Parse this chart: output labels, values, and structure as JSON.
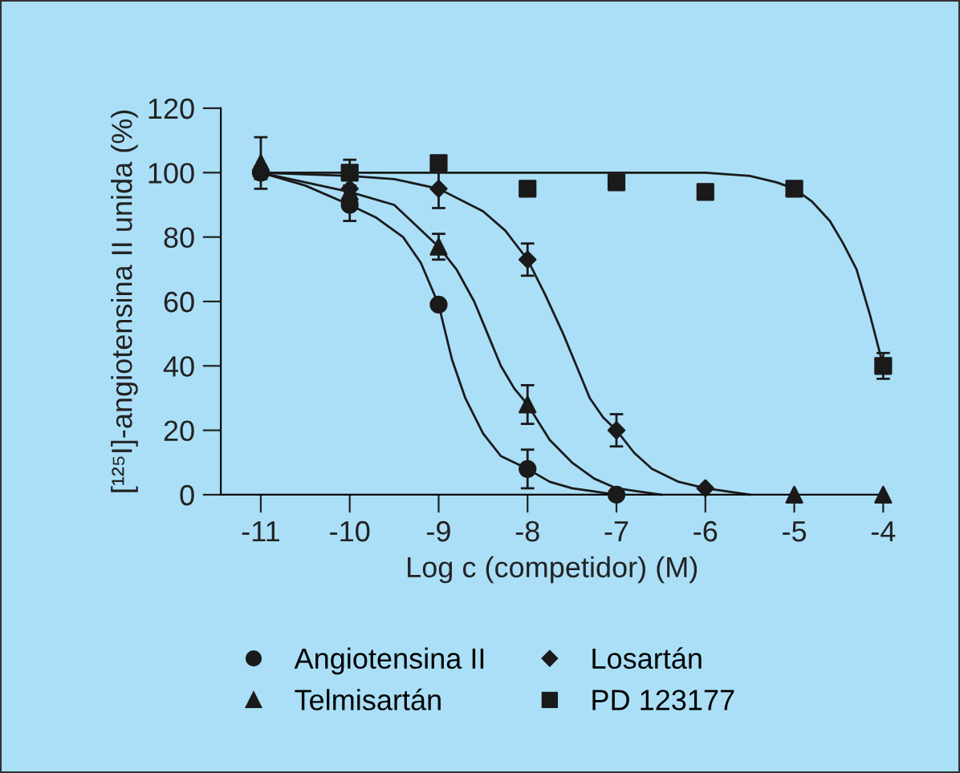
{
  "chart_data": {
    "type": "scatter",
    "xlabel": "Log c (competidor) (M)",
    "ylabel": "[¹²⁵I]-angiotensina II unida (%)",
    "xlim": [
      -11.45,
      -4
    ],
    "ylim": [
      0,
      120
    ],
    "xticks": [
      -11,
      -10,
      -9,
      -8,
      -7,
      -6,
      -5,
      -4
    ],
    "yticks": [
      0,
      20,
      40,
      60,
      80,
      100,
      120
    ],
    "grid": false,
    "legend": "bottom",
    "series": [
      {
        "name": "Angiotensina II",
        "marker": "circle",
        "color": "#1a1a1a",
        "x": [
          -11,
          -10,
          -9,
          -8,
          -7
        ],
        "values": [
          100,
          90,
          59,
          8,
          0
        ],
        "errors": [
          2,
          5,
          null,
          6,
          null
        ]
      },
      {
        "name": "Telmisartán",
        "marker": "triangle",
        "color": "#1a1a1a",
        "x": [
          -11,
          -10,
          -9,
          -8,
          -5,
          -4
        ],
        "values": [
          103,
          94,
          77,
          28,
          0,
          0
        ],
        "errors": [
          8,
          null,
          4,
          6,
          null,
          null
        ]
      },
      {
        "name": "Losartán",
        "marker": "diamond",
        "color": "#1a1a1a",
        "x": [
          -10,
          -9,
          -8,
          -7,
          -6
        ],
        "values": [
          95,
          95,
          73,
          20,
          2
        ],
        "errors": [
          null,
          6,
          5,
          5,
          null
        ]
      },
      {
        "name": "PD 123177",
        "marker": "square",
        "color": "#1a1a1a",
        "x": [
          -10,
          -9,
          -8,
          -7,
          -6,
          -5,
          -4
        ],
        "values": [
          100,
          103,
          95,
          97,
          94,
          95,
          40
        ],
        "errors": [
          4,
          null,
          null,
          null,
          null,
          null,
          4
        ]
      },
      {
        "type": "line",
        "marker": "none",
        "color": "#1a1a1a",
        "x": [
          -11,
          -10.5,
          -10,
          -9.7,
          -9.4,
          -9.2,
          -9,
          -8.85,
          -8.7,
          -8.5,
          -8.3,
          -8,
          -7.75,
          -7.5,
          -7.25,
          -7
        ],
        "values": [
          100,
          96,
          90,
          86,
          80,
          72,
          59,
          42,
          30,
          19,
          12,
          8,
          4,
          2,
          1,
          0
        ]
      },
      {
        "type": "line",
        "marker": "none",
        "color": "#1a1a1a",
        "x": [
          -11,
          -10.5,
          -10,
          -9.5,
          -9,
          -8.8,
          -8.6,
          -8.45,
          -8.3,
          -8.15,
          -8,
          -7.75,
          -7.5,
          -7.25,
          -7,
          -6.5
        ],
        "values": [
          100,
          97,
          94,
          90,
          77,
          70,
          60,
          50,
          40,
          33,
          28,
          17,
          10,
          5,
          2,
          0
        ]
      },
      {
        "type": "line",
        "marker": "none",
        "color": "#1a1a1a",
        "x": [
          -11,
          -10,
          -9.5,
          -9,
          -8.5,
          -8.25,
          -8,
          -7.8,
          -7.6,
          -7.45,
          -7.3,
          -7.15,
          -7,
          -6.8,
          -6.6,
          -6.3,
          -6,
          -5.5
        ],
        "values": [
          100,
          99,
          98,
          95,
          88,
          82,
          73,
          62,
          50,
          40,
          30,
          24,
          20,
          13,
          8,
          4,
          2,
          0
        ]
      },
      {
        "type": "line",
        "marker": "none",
        "color": "#1a1a1a",
        "x": [
          -11,
          -10,
          -9,
          -8,
          -7,
          -6,
          -5.5,
          -5.2,
          -5,
          -4.8,
          -4.6,
          -4.45,
          -4.3,
          -4.15,
          -4
        ],
        "values": [
          100,
          100,
          100,
          100,
          100,
          100,
          99,
          97,
          95,
          91,
          85,
          78,
          70,
          56,
          40
        ]
      }
    ]
  }
}
